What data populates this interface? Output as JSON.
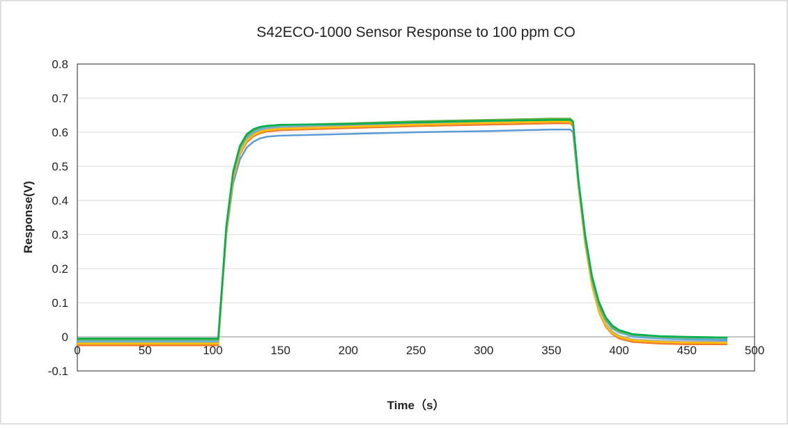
{
  "chart_data": {
    "type": "line",
    "title": "S42ECO-1000 Sensor Response to 100 ppm CO",
    "xlabel": "Time（s）",
    "ylabel": "Response(V)",
    "xlim": [
      0,
      500
    ],
    "ylim": [
      -0.1,
      0.8
    ],
    "x_ticks": [
      0,
      50,
      100,
      150,
      200,
      250,
      300,
      350,
      400,
      450,
      500
    ],
    "y_ticks": [
      -0.1,
      0,
      0.1,
      0.2,
      0.3,
      0.4,
      0.5,
      0.6,
      0.7,
      0.8
    ],
    "x_tick_labels": [
      "0",
      "50",
      "100",
      "150",
      "200",
      "250",
      "300",
      "350",
      "400",
      "450",
      "500"
    ],
    "y_tick_labels": [
      "-0.1",
      "0",
      "0.1",
      "0.2",
      "0.3",
      "0.4",
      "0.5",
      "0.6",
      "0.7",
      "0.8"
    ],
    "grid": "horizontal",
    "legend": "none",
    "series": [
      {
        "color": "#5b9bd5",
        "x": [
          0,
          50,
          100,
          104,
          110,
          115,
          120,
          125,
          130,
          135,
          140,
          150,
          200,
          250,
          300,
          350,
          364,
          366,
          370,
          375,
          380,
          385,
          390,
          395,
          400,
          410,
          430,
          450,
          480
        ],
        "y": [
          -0.01,
          -0.01,
          -0.01,
          -0.01,
          0.3,
          0.45,
          0.52,
          0.555,
          0.572,
          0.582,
          0.587,
          0.59,
          0.595,
          0.6,
          0.603,
          0.608,
          0.608,
          0.6,
          0.44,
          0.28,
          0.16,
          0.09,
          0.05,
          0.03,
          0.015,
          0.0,
          -0.005,
          -0.008,
          -0.01
        ]
      },
      {
        "color": "#ed7d31",
        "x": [
          0,
          50,
          100,
          104,
          110,
          115,
          120,
          125,
          130,
          135,
          140,
          150,
          200,
          250,
          300,
          350,
          364,
          366,
          370,
          375,
          380,
          385,
          390,
          395,
          400,
          410,
          430,
          450,
          480
        ],
        "y": [
          -0.025,
          -0.025,
          -0.025,
          -0.025,
          0.3,
          0.46,
          0.535,
          0.57,
          0.588,
          0.597,
          0.602,
          0.606,
          0.612,
          0.618,
          0.622,
          0.626,
          0.626,
          0.618,
          0.44,
          0.27,
          0.15,
          0.075,
          0.03,
          0.008,
          -0.005,
          -0.015,
          -0.02,
          -0.022,
          -0.022
        ]
      },
      {
        "color": "#a5a5a5",
        "x": [
          0,
          50,
          100,
          104,
          110,
          115,
          120,
          125,
          130,
          135,
          140,
          150,
          200,
          250,
          300,
          350,
          364,
          366,
          370,
          375,
          380,
          385,
          390,
          395,
          400,
          410,
          430,
          450,
          480
        ],
        "y": [
          -0.015,
          -0.015,
          -0.015,
          -0.015,
          0.31,
          0.47,
          0.545,
          0.58,
          0.597,
          0.606,
          0.611,
          0.615,
          0.62,
          0.626,
          0.63,
          0.634,
          0.634,
          0.626,
          0.445,
          0.275,
          0.155,
          0.08,
          0.038,
          0.015,
          0.003,
          -0.008,
          -0.012,
          -0.014,
          -0.015
        ]
      },
      {
        "color": "#ffc000",
        "x": [
          0,
          50,
          100,
          104,
          110,
          115,
          120,
          125,
          130,
          135,
          140,
          150,
          200,
          250,
          300,
          350,
          364,
          366,
          370,
          375,
          380,
          385,
          390,
          395,
          400,
          410,
          430,
          450,
          480
        ],
        "y": [
          -0.02,
          -0.02,
          -0.02,
          -0.02,
          0.305,
          0.465,
          0.54,
          0.575,
          0.592,
          0.601,
          0.606,
          0.61,
          0.616,
          0.622,
          0.627,
          0.631,
          0.631,
          0.623,
          0.442,
          0.272,
          0.152,
          0.078,
          0.034,
          0.011,
          0.0,
          -0.01,
          -0.015,
          -0.017,
          -0.018
        ]
      },
      {
        "color": "#5fb8d6",
        "x": [
          0,
          50,
          100,
          104,
          110,
          115,
          120,
          125,
          130,
          135,
          140,
          150,
          200,
          250,
          300,
          350,
          364,
          366,
          370,
          375,
          380,
          385,
          390,
          395,
          400,
          410,
          430,
          450,
          480
        ],
        "y": [
          -0.013,
          -0.013,
          -0.013,
          -0.013,
          0.315,
          0.475,
          0.55,
          0.585,
          0.601,
          0.61,
          0.614,
          0.618,
          0.624,
          0.629,
          0.633,
          0.637,
          0.637,
          0.629,
          0.45,
          0.285,
          0.165,
          0.092,
          0.048,
          0.024,
          0.012,
          0.002,
          -0.003,
          -0.005,
          -0.006
        ]
      },
      {
        "color": "#70ad47",
        "x": [
          0,
          50,
          100,
          104,
          110,
          115,
          120,
          125,
          130,
          135,
          140,
          150,
          200,
          250,
          300,
          350,
          364,
          366,
          370,
          375,
          380,
          385,
          390,
          395,
          400,
          410,
          430,
          450,
          480
        ],
        "y": [
          -0.008,
          -0.008,
          -0.008,
          -0.008,
          0.32,
          0.48,
          0.555,
          0.59,
          0.606,
          0.614,
          0.618,
          0.621,
          0.626,
          0.632,
          0.636,
          0.64,
          0.64,
          0.632,
          0.455,
          0.29,
          0.17,
          0.097,
          0.052,
          0.028,
          0.016,
          0.006,
          0.0,
          -0.002,
          -0.003
        ]
      },
      {
        "color": "#00b050",
        "x": [
          0,
          50,
          100,
          104,
          110,
          115,
          120,
          125,
          130,
          135,
          140,
          150,
          200,
          250,
          300,
          350,
          364,
          366,
          370,
          375,
          380,
          385,
          390,
          395,
          400,
          410,
          430,
          450,
          480
        ],
        "y": [
          -0.005,
          -0.005,
          -0.005,
          -0.005,
          0.325,
          0.485,
          0.56,
          0.594,
          0.609,
          0.616,
          0.619,
          0.622,
          0.624,
          0.629,
          0.633,
          0.636,
          0.636,
          0.63,
          0.46,
          0.298,
          0.178,
          0.104,
          0.058,
          0.033,
          0.02,
          0.008,
          0.002,
          0.0,
          -0.002
        ]
      }
    ]
  }
}
